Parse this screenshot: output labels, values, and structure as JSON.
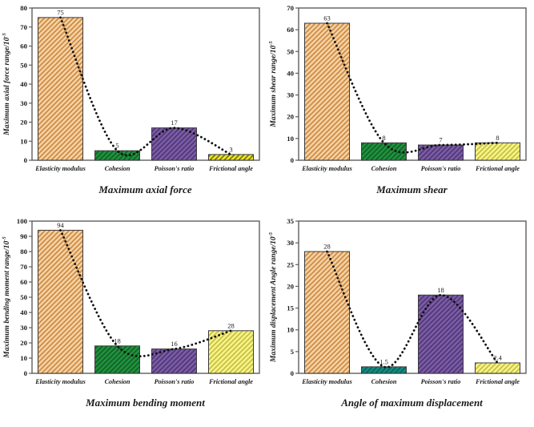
{
  "figure_name": "sensitivity-analysis-bar-charts",
  "chart_data": [
    {
      "type": "bar",
      "title": "Maximum axial force",
      "ylabel": "Maximum axial force range/10",
      "ylabel_sup": "-5",
      "categories": [
        "Elasticity modulus",
        "Cohesion",
        "Poisson's ratio",
        "Frictional angle"
      ],
      "values": [
        75,
        5,
        17,
        3
      ],
      "value_labels": [
        "75",
        "5",
        "17",
        "3"
      ],
      "ylim": [
        0,
        80
      ],
      "ytick_step": 10,
      "grid": "off",
      "trend": "dotted spline through bar tops",
      "bar_fill": [
        "#f7d0a1",
        "#21913d",
        "#7a5ca3",
        "#ece71e"
      ],
      "bar_hatch": [
        "#c8873f",
        "#0e5f26",
        "#4e3478",
        "#6f6d20"
      ],
      "bar_border": "#3b3b3b",
      "trend_color": "#101010"
    },
    {
      "type": "bar",
      "title": "Maximum shear",
      "ylabel": "Maximum shear range/10",
      "ylabel_sup": "-5",
      "categories": [
        "Elasticity modulus",
        "Cohesion",
        "Poisson's ratio",
        "Frictional angle"
      ],
      "values": [
        63,
        8,
        7,
        8
      ],
      "value_labels": [
        "63",
        "8",
        "7",
        "8"
      ],
      "ylim": [
        0,
        70
      ],
      "ytick_step": 10,
      "grid": "off",
      "trend": "dotted spline through bar tops",
      "bar_fill": [
        "#f7d0a1",
        "#21913d",
        "#7a5ca3",
        "#f6f388"
      ],
      "bar_hatch": [
        "#c8873f",
        "#0e5f26",
        "#4e3478",
        "#c3bd3e"
      ],
      "bar_border": "#3b3b3b",
      "trend_color": "#101010"
    },
    {
      "type": "bar",
      "title": "Maximum bending moment",
      "ylabel": "Maximum bending moment range/10",
      "ylabel_sup": "-5",
      "categories": [
        "Elasticity modulus",
        "Cohesion",
        "Poisson's ratio",
        "Frictional angle"
      ],
      "values": [
        94,
        18,
        16,
        28
      ],
      "value_labels": [
        "94",
        "18",
        "16",
        "28"
      ],
      "ylim": [
        0,
        100
      ],
      "ytick_step": 10,
      "grid": "off",
      "trend": "dotted spline through bar tops",
      "bar_fill": [
        "#f7d0a1",
        "#21913d",
        "#7a5ca3",
        "#f6f388"
      ],
      "bar_hatch": [
        "#c8873f",
        "#0e5f26",
        "#4e3478",
        "#c3bd3e"
      ],
      "bar_border": "#3b3b3b",
      "trend_color": "#101010"
    },
    {
      "type": "bar",
      "title": "Angle of maximum displacement",
      "ylabel": "Maximum displacement Angle range/10",
      "ylabel_sup": "-5",
      "categories": [
        "Elasticity modulus",
        "Cohesion",
        "Poisson's ratio",
        "Frictional angle"
      ],
      "values": [
        28,
        1.5,
        18,
        2.4
      ],
      "value_labels": [
        "28",
        "1.5",
        "18",
        "2.4"
      ],
      "ylim": [
        0,
        35
      ],
      "ytick_step": 5,
      "grid": "off",
      "trend": "dotted spline through bar tops",
      "bar_fill": [
        "#f7d0a1",
        "#148b80",
        "#7a5ca3",
        "#f6f388"
      ],
      "bar_hatch": [
        "#c8873f",
        "#09645c",
        "#4e3478",
        "#c3bd3e"
      ],
      "bar_border": "#3b3b3b",
      "trend_color": "#101010"
    }
  ],
  "style": {
    "axis_color": "#5f5f5f",
    "text_color": "#1a1a1a"
  }
}
